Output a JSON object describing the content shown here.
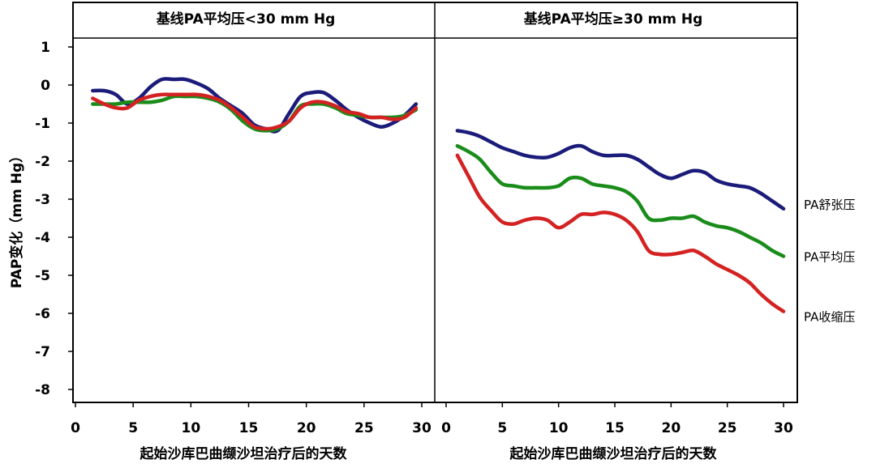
{
  "chart_data": {
    "type": "line",
    "ylabel": "PAP变化（mm Hg）",
    "ylim": [
      -8.4,
      1.2
    ],
    "yticks": [
      1,
      0,
      -1,
      -2,
      -3,
      -4,
      -5,
      -6,
      -7,
      -8
    ],
    "xlim": [
      0,
      30
    ],
    "xticks": [
      0,
      5,
      10,
      15,
      20,
      25,
      30
    ],
    "grid": false,
    "colors": {
      "PA舒张压": "#1b1b7a",
      "PA平均压": "#1a8c1a",
      "PA收缩压": "#d42222"
    },
    "series_labels": [
      "PA舒张压",
      "PA平均压",
      "PA收缩压"
    ],
    "panels": [
      {
        "title": "基线PA平均压<30 mm Hg",
        "xlabel": "起始沙库巴曲缬沙坦治疗后的天数",
        "series": [
          {
            "name": "PA舒张压",
            "x": [
              1.5,
              2.5,
              3.5,
              4.5,
              5.5,
              6.5,
              7.5,
              8.5,
              9.5,
              10.5,
              11.5,
              12.5,
              13.5,
              14.5,
              15.5,
              16.5,
              17.5,
              18.5,
              19.5,
              20.5,
              21.5,
              22.5,
              23.5,
              24.5,
              25.5,
              26.5,
              27.5,
              28.5,
              29.5
            ],
            "y": [
              -0.15,
              -0.15,
              -0.25,
              -0.5,
              -0.35,
              -0.05,
              0.15,
              0.15,
              0.15,
              0.05,
              -0.1,
              -0.35,
              -0.55,
              -0.75,
              -1.05,
              -1.15,
              -1.2,
              -0.75,
              -0.3,
              -0.2,
              -0.2,
              -0.4,
              -0.65,
              -0.85,
              -1.0,
              -1.1,
              -1.0,
              -0.8,
              -0.5
            ]
          },
          {
            "name": "PA平均压",
            "x": [
              1.5,
              2.5,
              3.5,
              4.5,
              5.5,
              6.5,
              7.5,
              8.5,
              9.5,
              10.5,
              11.5,
              12.5,
              13.5,
              14.5,
              15.5,
              16.5,
              17.5,
              18.5,
              19.5,
              20.5,
              21.5,
              22.5,
              23.5,
              24.5,
              25.5,
              26.5,
              27.5,
              28.5,
              29.5
            ],
            "y": [
              -0.5,
              -0.5,
              -0.5,
              -0.45,
              -0.45,
              -0.45,
              -0.4,
              -0.3,
              -0.3,
              -0.3,
              -0.35,
              -0.45,
              -0.65,
              -0.95,
              -1.15,
              -1.2,
              -1.15,
              -0.95,
              -0.55,
              -0.5,
              -0.5,
              -0.6,
              -0.75,
              -0.8,
              -0.85,
              -0.85,
              -0.85,
              -0.8,
              -0.65
            ]
          },
          {
            "name": "PA收缩压",
            "x": [
              1.5,
              2.5,
              3.5,
              4.5,
              5.5,
              6.5,
              7.5,
              8.5,
              9.5,
              10.5,
              11.5,
              12.5,
              13.5,
              14.5,
              15.5,
              16.5,
              17.5,
              18.5,
              19.5,
              20.5,
              21.5,
              22.5,
              23.5,
              24.5,
              25.5,
              26.5,
              27.5,
              28.5,
              29.5
            ],
            "y": [
              -0.35,
              -0.5,
              -0.6,
              -0.6,
              -0.4,
              -0.3,
              -0.25,
              -0.25,
              -0.25,
              -0.25,
              -0.3,
              -0.4,
              -0.6,
              -0.85,
              -1.1,
              -1.15,
              -1.1,
              -0.95,
              -0.6,
              -0.45,
              -0.45,
              -0.55,
              -0.7,
              -0.75,
              -0.85,
              -0.85,
              -0.9,
              -0.85,
              -0.6
            ]
          }
        ]
      },
      {
        "title": "基线PA平均压≥30 mm Hg",
        "xlabel": "起始沙库巴曲缬沙坦治疗后的天数",
        "series": [
          {
            "name": "PA舒张压",
            "x": [
              1,
              2,
              3,
              4,
              5,
              6,
              7,
              8,
              9,
              10,
              11,
              12,
              13,
              14,
              15,
              16,
              17,
              18,
              19,
              20,
              21,
              22,
              23,
              24,
              25,
              26,
              27,
              28,
              29,
              30
            ],
            "y": [
              -1.2,
              -1.25,
              -1.35,
              -1.5,
              -1.65,
              -1.75,
              -1.85,
              -1.9,
              -1.9,
              -1.8,
              -1.65,
              -1.6,
              -1.75,
              -1.85,
              -1.85,
              -1.85,
              -1.95,
              -2.15,
              -2.35,
              -2.45,
              -2.35,
              -2.25,
              -2.3,
              -2.5,
              -2.6,
              -2.65,
              -2.7,
              -2.85,
              -3.05,
              -3.25
            ]
          },
          {
            "name": "PA平均压",
            "x": [
              1,
              2,
              3,
              4,
              5,
              6,
              7,
              8,
              9,
              10,
              11,
              12,
              13,
              14,
              15,
              16,
              17,
              18,
              19,
              20,
              21,
              22,
              23,
              24,
              25,
              26,
              27,
              28,
              29,
              30
            ],
            "y": [
              -1.6,
              -1.75,
              -1.95,
              -2.3,
              -2.6,
              -2.65,
              -2.7,
              -2.7,
              -2.7,
              -2.65,
              -2.45,
              -2.45,
              -2.6,
              -2.65,
              -2.7,
              -2.8,
              -3.05,
              -3.5,
              -3.55,
              -3.5,
              -3.5,
              -3.45,
              -3.6,
              -3.7,
              -3.75,
              -3.85,
              -4.0,
              -4.15,
              -4.35,
              -4.5
            ]
          },
          {
            "name": "PA收缩压",
            "x": [
              1,
              2,
              3,
              4,
              5,
              6,
              7,
              8,
              9,
              10,
              11,
              12,
              13,
              14,
              15,
              16,
              17,
              18,
              19,
              20,
              21,
              22,
              23,
              24,
              25,
              26,
              27,
              28,
              29,
              30
            ],
            "y": [
              -1.85,
              -2.4,
              -2.95,
              -3.3,
              -3.6,
              -3.65,
              -3.55,
              -3.5,
              -3.55,
              -3.75,
              -3.6,
              -3.4,
              -3.4,
              -3.35,
              -3.4,
              -3.55,
              -3.85,
              -4.35,
              -4.45,
              -4.45,
              -4.4,
              -4.35,
              -4.5,
              -4.7,
              -4.85,
              -5.0,
              -5.2,
              -5.5,
              -5.75,
              -5.95
            ]
          }
        ]
      }
    ]
  }
}
